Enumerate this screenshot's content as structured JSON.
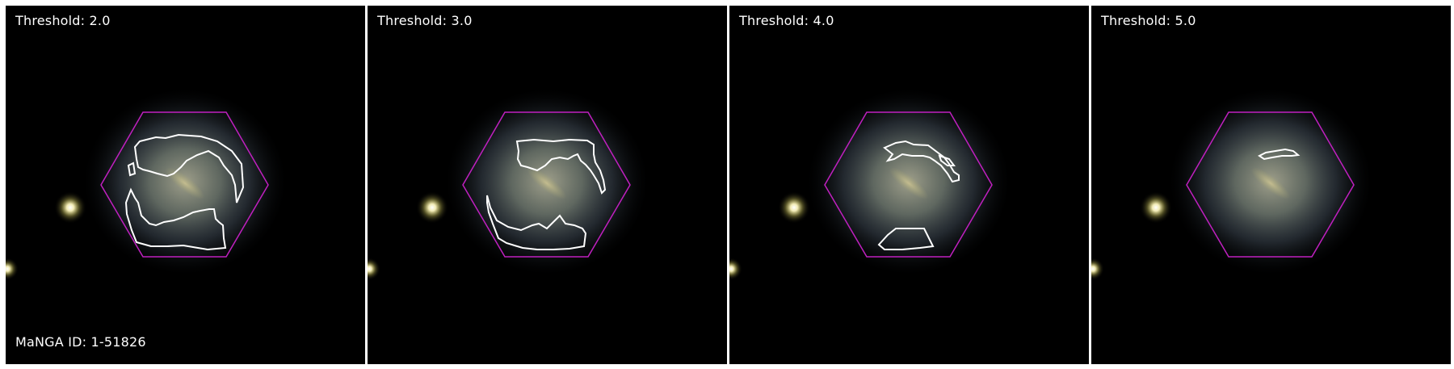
{
  "panels": [
    {
      "threshold_label": "Threshold: 2.0"
    },
    {
      "threshold_label": "Threshold: 3.0"
    },
    {
      "threshold_label": "Threshold: 4.0"
    },
    {
      "threshold_label": "Threshold: 5.0"
    }
  ],
  "manga_id_label": "MaNGA ID: 1-51826",
  "colors": {
    "hexagon": "#c020c0",
    "contour": "#ffffff",
    "background": "#000000"
  }
}
